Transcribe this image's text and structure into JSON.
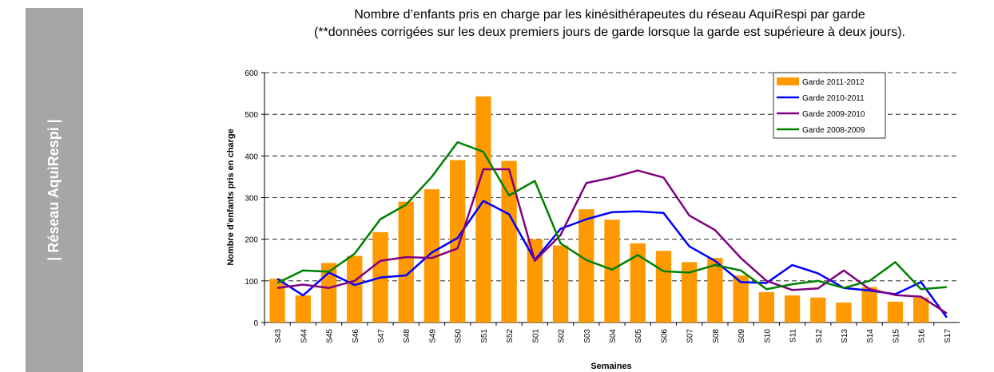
{
  "sidebar": "| Réseau AquiRespi |",
  "chart_data": {
    "type": "combo",
    "title": "Nombre d’enfants pris en charge par les kinésithérapeutes du réseau AquiRespi par garde",
    "subtitle": "(**données corrigées sur les deux premiers jours de garde lorsque la garde est supérieure à deux jours).",
    "x_label": "Semaines",
    "y_label": "Nombre d'enfants pris en charge",
    "categories": [
      "S43",
      "S44",
      "S45",
      "S46",
      "S47",
      "S48",
      "S49",
      "S50",
      "S51",
      "S52",
      "S01",
      "S02",
      "S03",
      "S04",
      "S05",
      "S06",
      "S07",
      "S08",
      "S09",
      "S10",
      "S11",
      "S12",
      "S13",
      "S14",
      "S15",
      "S16",
      "S17"
    ],
    "series": [
      {
        "name": "Garde 2011-2012",
        "type": "bar",
        "color": "#ff9900",
        "values": [
          105,
          65,
          143,
          160,
          217,
          290,
          320,
          390,
          543,
          388,
          200,
          185,
          272,
          247,
          190,
          172,
          145,
          155,
          113,
          73,
          65,
          60,
          48,
          85,
          50,
          60,
          null
        ]
      },
      {
        "name": "Garde 2010-2011",
        "type": "line",
        "color": "#0000ff",
        "values": [
          105,
          65,
          120,
          90,
          108,
          113,
          168,
          203,
          292,
          260,
          150,
          225,
          248,
          265,
          267,
          263,
          183,
          148,
          97,
          95,
          138,
          118,
          83,
          77,
          68,
          97,
          12
        ]
      },
      {
        "name": "Garde 2009-2010",
        "type": "line",
        "color": "#800080",
        "values": [
          83,
          91,
          83,
          100,
          148,
          157,
          155,
          178,
          368,
          368,
          148,
          210,
          335,
          348,
          365,
          348,
          257,
          222,
          155,
          100,
          78,
          82,
          125,
          80,
          66,
          62,
          22
        ]
      },
      {
        "name": "Garde 2008-2009",
        "type": "line",
        "color": "#008000",
        "values": [
          95,
          125,
          122,
          165,
          248,
          283,
          350,
          433,
          410,
          305,
          340,
          190,
          150,
          127,
          162,
          123,
          120,
          138,
          125,
          80,
          92,
          100,
          83,
          100,
          145,
          80,
          85
        ]
      }
    ],
    "ylim": [
      0,
      600
    ],
    "yticks": [
      0,
      100,
      200,
      300,
      400,
      500,
      600
    ],
    "grid": true,
    "legend": "top-right"
  }
}
